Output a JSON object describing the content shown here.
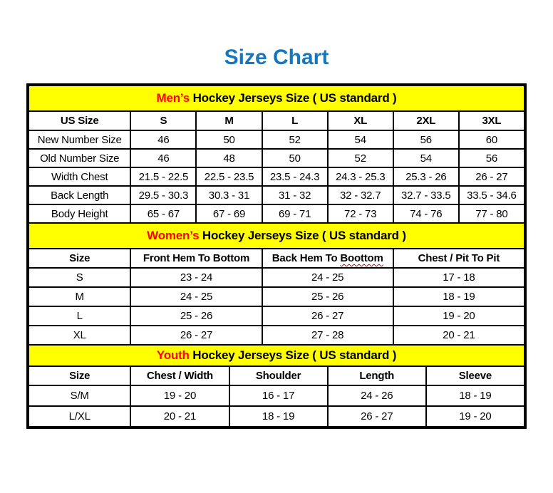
{
  "page": {
    "title": "Size Chart"
  },
  "colors": {
    "title_blue": "#1777BD",
    "band_yellow": "#FFFF00",
    "highlight_red": "#FF0000",
    "squiggle_red": "#C00000",
    "border_black": "#000000"
  },
  "tables": [
    {
      "id": "mens",
      "section_header": {
        "highlight": "Men’s",
        "rest": " Hockey Jerseys Size ( US standard )"
      },
      "columns": [
        "US Size",
        "S",
        "M",
        "L",
        "XL",
        "2XL",
        "3XL"
      ],
      "first_col_bold": false,
      "rows": [
        [
          "New Number Size",
          "46",
          "50",
          "52",
          "54",
          "56",
          "60"
        ],
        [
          "Old Number Size",
          "46",
          "48",
          "50",
          "52",
          "54",
          "56"
        ],
        [
          "Width Chest",
          "21.5 - 22.5",
          "22.5 - 23.5",
          "23.5 - 24.3",
          "24.3 - 25.3",
          "25.3 - 26",
          "26 - 27"
        ],
        [
          "Back Length",
          "29.5 - 30.3",
          "30.3 - 31",
          "31 - 32",
          "32 - 32.7",
          "32.7 - 33.5",
          "33.5 - 34.6"
        ],
        [
          "Body Height",
          "65 - 67",
          "67 - 69",
          "69 - 71",
          "72 - 73",
          "74 - 76",
          "77 - 80"
        ]
      ]
    },
    {
      "id": "womens",
      "section_header": {
        "highlight": "Women’s",
        "rest": " Hockey Jerseys Size ( US standard )"
      },
      "columns": [
        "Size",
        "Front Hem To Bottom",
        "Back Hem To Boottom",
        "Chest / Pit To Pit"
      ],
      "misspell": {
        "col_index": 2,
        "prefix": "Back Hem To ",
        "word": "Boottom"
      },
      "first_col_bold": true,
      "rows": [
        [
          "S",
          "23 - 24",
          "24 - 25",
          "17 - 18"
        ],
        [
          "M",
          "24 - 25",
          "25 - 26",
          "18 - 19"
        ],
        [
          "L",
          "25 - 26",
          "26 - 27",
          "19 - 20"
        ],
        [
          "XL",
          "26 - 27",
          "27 - 28",
          "20 - 21"
        ]
      ]
    },
    {
      "id": "youth",
      "section_header": {
        "highlight": "Youth",
        "rest": " Hockey Jerseys Size ( US standard )"
      },
      "columns": [
        "Size",
        "Chest / Width",
        "Shoulder",
        "Length",
        "Sleeve"
      ],
      "first_col_bold": true,
      "rows": [
        [
          "S/M",
          "19 - 20",
          "16 - 17",
          "24 - 26",
          "18 - 19"
        ],
        [
          "L/XL",
          "20 - 21",
          "18 - 19",
          "26 - 27",
          "19 - 20"
        ]
      ]
    }
  ]
}
